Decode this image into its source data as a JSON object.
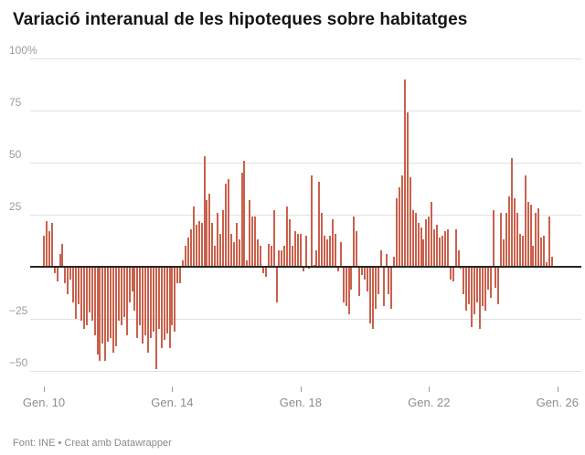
{
  "title": "Variació interanual de les hipoteques sobre habitatges",
  "footer": "Font: INE • Creat amb Datawrapper",
  "chart_data": {
    "type": "bar",
    "title": "Variació interanual de les hipoteques sobre habitatges",
    "unit": "%",
    "frequency": "monthly",
    "x_range": {
      "start": "Gen. 2010",
      "end": "Nov. 2025"
    },
    "xlabel": "",
    "ylabel": "%",
    "ylim": [
      -50,
      100
    ],
    "grid": true,
    "legend": "none",
    "y_ticks": [
      100,
      75,
      50,
      25,
      -25,
      -50
    ],
    "y_tick_labels": [
      "100%",
      "75",
      "50",
      "25",
      "−25",
      "−50"
    ],
    "x_tick_labels": [
      "Gen. 10",
      "Gen. 14",
      "Gen. 18",
      "Gen. 22",
      "Gen. 26"
    ],
    "x_tick_month_indices": [
      0,
      48,
      96,
      144,
      192
    ],
    "bar_color": "#c9614c",
    "baseline_color": "#262626",
    "grid_color": "#e1e1e1",
    "values": [
      15,
      22,
      17,
      21,
      -3,
      -7,
      6,
      11,
      -8,
      -13,
      -6,
      -17,
      -25,
      -18,
      -26,
      -30,
      -28,
      -22,
      -26,
      -33,
      -42,
      -45,
      -37,
      -45,
      -36,
      -34,
      -41,
      -38,
      -26,
      -28,
      -24,
      -33,
      -17,
      -12,
      -21,
      -34,
      -28,
      -37,
      -33,
      -41,
      -34,
      -31,
      -49,
      -30,
      -39,
      -35,
      -32,
      -39,
      -28,
      -31,
      -8,
      -8,
      3,
      10,
      14,
      18,
      29,
      20,
      22,
      21,
      53,
      32,
      35,
      21,
      10,
      26,
      16,
      27,
      40,
      42,
      16,
      12,
      21,
      13,
      45,
      51,
      3,
      32,
      24,
      24,
      13,
      10,
      -3,
      -5,
      11,
      10,
      27,
      -17,
      8,
      8,
      10,
      29,
      23,
      10,
      17,
      16,
      16,
      -2,
      15,
      -1,
      44,
      1,
      8,
      41,
      26,
      15,
      13,
      15,
      23,
      16,
      -2,
      12,
      -17,
      -19,
      -23,
      -11,
      24,
      17,
      -14,
      -4,
      -6,
      -12,
      -27,
      -30,
      -20,
      -13,
      8,
      -19,
      6,
      -13,
      -20,
      5,
      33,
      38,
      44,
      90,
      74,
      43,
      27,
      26,
      21,
      19,
      13,
      23,
      24,
      31,
      18,
      20,
      14,
      15,
      17,
      18,
      -6,
      -7,
      18,
      8,
      -1,
      -13,
      -21,
      -18,
      -29,
      -23,
      -17,
      -30,
      -19,
      -21,
      -11,
      -15,
      27,
      -10,
      -18,
      26,
      13,
      26,
      34,
      52,
      33,
      26,
      16,
      15,
      44,
      31,
      30,
      10,
      26,
      28,
      14,
      15,
      2,
      24,
      5
    ]
  }
}
